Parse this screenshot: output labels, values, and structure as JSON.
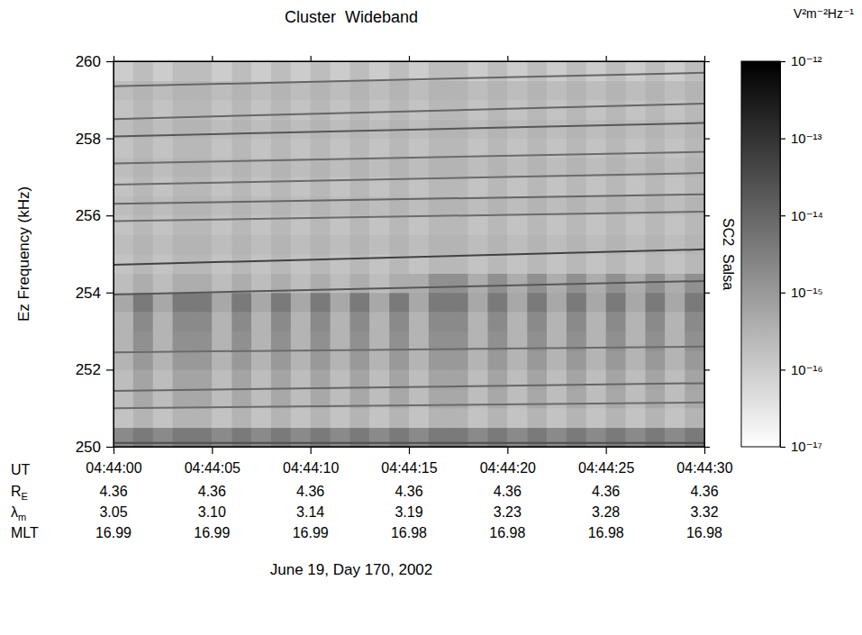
{
  "chart_data": {
    "type": "heatmap",
    "title": "Cluster  Wideband",
    "ylabel": "Ez Frequency (kHz)",
    "right_label": "SC2  Salsa",
    "xlabel": "June 19, Day 170, 2002",
    "x_tick_title": "UT",
    "xlim": [
      0,
      30
    ],
    "xticks": [
      {
        "value": 0,
        "label": "04:44:00"
      },
      {
        "value": 5,
        "label": "04:44:05"
      },
      {
        "value": 10,
        "label": "04:44:10"
      },
      {
        "value": 15,
        "label": "04:44:15"
      },
      {
        "value": 20,
        "label": "04:44:20"
      },
      {
        "value": 25,
        "label": "04:44:25"
      },
      {
        "value": 30,
        "label": "04:44:30"
      }
    ],
    "ylim": [
      250,
      260
    ],
    "yticks": [
      250,
      252,
      254,
      256,
      258,
      260
    ],
    "x_bins": [
      0,
      1,
      2,
      3,
      4,
      5,
      6,
      7,
      8,
      9,
      10,
      11,
      12,
      13,
      14,
      15,
      16,
      17,
      18,
      19,
      20,
      21,
      22,
      23,
      24,
      25,
      26,
      27,
      28,
      29,
      30
    ],
    "y_bins": [
      250,
      250.5,
      251,
      251.5,
      252,
      252.5,
      253,
      253.5,
      254,
      254.5,
      255,
      255.5,
      256,
      256.5,
      257,
      257.5,
      258,
      258.5,
      259,
      259.5,
      260
    ],
    "cells": [
      [
        2e-15,
        4e-15,
        2e-15,
        4e-15,
        4e-15,
        2e-15,
        4e-15,
        2e-15,
        4e-15,
        2e-15,
        4e-15,
        2e-15,
        4e-15,
        2e-15,
        4e-15,
        2e-15,
        4e-15,
        4e-15,
        2e-15,
        4e-15,
        2e-15,
        4e-15,
        2e-15,
        4e-15,
        2e-15,
        4e-15,
        2e-15,
        4e-15,
        2e-15,
        4e-15
      ],
      [
        1.5e-16,
        3e-16,
        1.5e-16,
        3e-16,
        3e-16,
        1.5e-16,
        3e-16,
        1.5e-16,
        3e-16,
        1.5e-16,
        3e-16,
        1.5e-16,
        3e-16,
        1.5e-16,
        3e-16,
        1.5e-16,
        3e-16,
        3e-16,
        1.5e-16,
        3e-16,
        1.5e-16,
        3e-16,
        1.5e-16,
        3e-16,
        1.5e-16,
        3e-16,
        1.5e-16,
        3e-16,
        1.5e-16,
        3e-16
      ],
      [
        2e-16,
        5e-16,
        2e-16,
        5e-16,
        5e-16,
        2e-16,
        5e-16,
        2e-16,
        5e-16,
        2e-16,
        5e-16,
        2e-16,
        5e-16,
        2e-16,
        5e-16,
        2e-16,
        5e-16,
        5e-16,
        2e-16,
        5e-16,
        2e-16,
        5e-16,
        2e-16,
        5e-16,
        2e-16,
        5e-16,
        2e-16,
        5e-16,
        2e-16,
        5e-16
      ],
      [
        2e-16,
        6e-16,
        2e-16,
        6e-16,
        6e-16,
        2e-16,
        6e-16,
        2e-16,
        6e-16,
        2e-16,
        6e-16,
        2e-16,
        6e-16,
        2e-16,
        6e-16,
        2e-16,
        6e-16,
        6e-16,
        2e-16,
        6e-16,
        2e-16,
        6e-16,
        2e-16,
        6e-16,
        2e-16,
        6e-16,
        2e-16,
        6e-16,
        2e-16,
        6e-16
      ],
      [
        3e-16,
        1e-15,
        3e-16,
        1e-15,
        1e-15,
        3e-16,
        1e-15,
        3e-16,
        1e-15,
        3e-16,
        1e-15,
        3e-16,
        1e-15,
        3e-16,
        1e-15,
        3e-16,
        1e-15,
        1e-15,
        3e-16,
        1e-15,
        3e-16,
        1e-15,
        3e-16,
        1e-15,
        3e-16,
        1e-15,
        3e-16,
        1e-15,
        3e-16,
        1e-15
      ],
      [
        3e-16,
        1.5e-15,
        3e-16,
        1.5e-15,
        1.5e-15,
        3e-16,
        1.5e-15,
        3e-16,
        1.5e-15,
        3e-16,
        1.5e-15,
        3e-16,
        1.5e-15,
        3e-16,
        1.5e-15,
        3e-16,
        1.5e-15,
        1.5e-15,
        3e-16,
        1.5e-15,
        3e-16,
        1.5e-15,
        3e-16,
        1.5e-15,
        3e-16,
        1.5e-15,
        3e-16,
        1.5e-15,
        3e-16,
        1.5e-15
      ],
      [
        3e-16,
        2e-15,
        3e-16,
        2e-15,
        2e-15,
        3e-16,
        2e-15,
        3e-16,
        2e-15,
        3e-16,
        2e-15,
        3e-16,
        2e-15,
        3e-16,
        2e-15,
        3e-16,
        2e-15,
        2e-15,
        3e-16,
        2e-15,
        3e-16,
        2e-15,
        3e-16,
        2e-15,
        3e-16,
        2e-15,
        3e-16,
        2e-15,
        3e-16,
        2e-15
      ],
      [
        5e-16,
        4e-15,
        5e-16,
        4e-15,
        4e-15,
        5e-16,
        4e-15,
        5e-16,
        4e-15,
        5e-16,
        4e-15,
        5e-16,
        4e-15,
        5e-16,
        4e-15,
        5e-16,
        4e-15,
        4e-15,
        5e-16,
        4e-15,
        5e-16,
        4e-15,
        5e-16,
        4e-15,
        5e-16,
        4e-15,
        5e-16,
        4e-15,
        5e-16,
        4e-15
      ],
      [
        2e-16,
        4e-16,
        2e-16,
        4e-16,
        4e-16,
        2e-16,
        4e-16,
        2e-16,
        4e-16,
        2e-16,
        4e-16,
        2e-16,
        4e-16,
        2e-16,
        4e-16,
        4e-16,
        1.5e-15,
        1.5e-15,
        4e-16,
        1.5e-15,
        4e-16,
        1.5e-15,
        4e-16,
        1.5e-15,
        4e-16,
        1.5e-15,
        4e-16,
        1.5e-15,
        4e-16,
        1.5e-15
      ],
      [
        1.5e-16,
        2.5e-16,
        1.5e-16,
        2.5e-16,
        2.5e-16,
        1.5e-16,
        2.5e-16,
        1.5e-16,
        2.5e-16,
        1.5e-16,
        2.5e-16,
        1.5e-16,
        2.5e-16,
        1.5e-16,
        2.5e-16,
        1.5e-16,
        2.5e-16,
        2.5e-16,
        1.5e-16,
        2.5e-16,
        1.5e-16,
        2.5e-16,
        1.5e-16,
        2.5e-16,
        1.5e-16,
        2.5e-16,
        1.5e-16,
        2.5e-16,
        1.5e-16,
        2.5e-16
      ],
      [
        2e-16,
        3e-16,
        2e-16,
        3e-16,
        3e-16,
        2e-16,
        3e-16,
        2e-16,
        3e-16,
        2e-16,
        3e-16,
        2e-16,
        3e-16,
        2e-16,
        3e-16,
        2e-16,
        3e-16,
        3e-16,
        2e-16,
        3e-16,
        2e-16,
        3e-16,
        2e-16,
        3e-16,
        2e-16,
        3e-16,
        2e-16,
        3e-16,
        2e-16,
        3e-16
      ],
      [
        1.5e-16,
        2.5e-16,
        1.5e-16,
        2.5e-16,
        2.5e-16,
        1.5e-16,
        2.5e-16,
        1.5e-16,
        2.5e-16,
        1.5e-16,
        2.5e-16,
        1.5e-16,
        2.5e-16,
        1.5e-16,
        2.5e-16,
        1.5e-16,
        2.5e-16,
        2.5e-16,
        1.5e-16,
        2.5e-16,
        1.5e-16,
        2.5e-16,
        1.5e-16,
        2.5e-16,
        1.5e-16,
        2.5e-16,
        1.5e-16,
        2.5e-16,
        1.5e-16,
        2.5e-16
      ],
      [
        2e-16,
        3e-16,
        2e-16,
        3e-16,
        3e-16,
        2e-16,
        3e-16,
        2e-16,
        3e-16,
        2e-16,
        3e-16,
        2e-16,
        3e-16,
        2e-16,
        3e-16,
        2e-16,
        3e-16,
        3e-16,
        2e-16,
        3e-16,
        2e-16,
        3e-16,
        2e-16,
        3e-16,
        2e-16,
        3e-16,
        2e-16,
        3e-16,
        2e-16,
        3e-16
      ],
      [
        1.5e-16,
        2.5e-16,
        1.5e-16,
        2.5e-16,
        2.5e-16,
        1.5e-16,
        2.5e-16,
        1.5e-16,
        2.5e-16,
        1.5e-16,
        2.5e-16,
        1.5e-16,
        2.5e-16,
        1.5e-16,
        2.5e-16,
        1.5e-16,
        2.5e-16,
        2.5e-16,
        1.5e-16,
        2.5e-16,
        1.5e-16,
        2.5e-16,
        1.5e-16,
        2.5e-16,
        1.5e-16,
        2.5e-16,
        1.5e-16,
        2.5e-16,
        1.5e-16,
        2.5e-16
      ],
      [
        2e-16,
        3e-16,
        2e-16,
        3e-16,
        3e-16,
        2e-16,
        3e-16,
        2e-16,
        3e-16,
        2e-16,
        3e-16,
        2e-16,
        3e-16,
        2e-16,
        3e-16,
        2e-16,
        3e-16,
        3e-16,
        2e-16,
        3e-16,
        2e-16,
        3e-16,
        2e-16,
        3e-16,
        2e-16,
        3e-16,
        2e-16,
        3e-16,
        2e-16,
        3e-16
      ],
      [
        1.5e-16,
        2.5e-16,
        1.5e-16,
        2.5e-16,
        2.5e-16,
        1.5e-16,
        2.5e-16,
        1.5e-16,
        2.5e-16,
        1.5e-16,
        2.5e-16,
        1.5e-16,
        2.5e-16,
        1.5e-16,
        2.5e-16,
        1.5e-16,
        2.5e-16,
        2.5e-16,
        1.5e-16,
        2.5e-16,
        1.5e-16,
        2.5e-16,
        1.5e-16,
        2.5e-16,
        1.5e-16,
        2.5e-16,
        1.5e-16,
        2.5e-16,
        1.5e-16,
        2.5e-16
      ],
      [
        2e-16,
        3e-16,
        2e-16,
        3e-16,
        3e-16,
        2e-16,
        3e-16,
        2e-16,
        3e-16,
        2e-16,
        3e-16,
        2e-16,
        3e-16,
        2e-16,
        3e-16,
        2e-16,
        3e-16,
        3e-16,
        2e-16,
        3e-16,
        2e-16,
        3e-16,
        2e-16,
        3e-16,
        2e-16,
        3e-16,
        2e-16,
        3e-16,
        2e-16,
        3e-16
      ],
      [
        1.5e-16,
        2.5e-16,
        1.5e-16,
        2.5e-16,
        2.5e-16,
        1.5e-16,
        2.5e-16,
        1.5e-16,
        2.5e-16,
        1.5e-16,
        2.5e-16,
        1.5e-16,
        2.5e-16,
        1.5e-16,
        2.5e-16,
        1.5e-16,
        2.5e-16,
        2.5e-16,
        1.5e-16,
        2.5e-16,
        1.5e-16,
        2.5e-16,
        1.5e-16,
        2.5e-16,
        1.5e-16,
        2.5e-16,
        1.5e-16,
        2.5e-16,
        1.5e-16,
        2.5e-16
      ],
      [
        2e-16,
        3e-16,
        2e-16,
        3e-16,
        3e-16,
        2e-16,
        3e-16,
        2e-16,
        3e-16,
        2e-16,
        3e-16,
        2e-16,
        3e-16,
        2e-16,
        3e-16,
        2e-16,
        3e-16,
        3e-16,
        2e-16,
        3e-16,
        2e-16,
        3e-16,
        2e-16,
        3e-16,
        2e-16,
        3e-16,
        2e-16,
        3e-16,
        2e-16,
        3e-16
      ],
      [
        1e-16,
        2e-16,
        1e-16,
        2e-16,
        2e-16,
        1e-16,
        2e-16,
        1e-16,
        2e-16,
        1e-16,
        2e-16,
        1e-16,
        2e-16,
        1e-16,
        2e-16,
        1e-16,
        2e-16,
        2e-16,
        1e-16,
        2e-16,
        1e-16,
        2e-16,
        1e-16,
        2e-16,
        1e-16,
        2e-16,
        1e-16,
        2e-16,
        1e-16,
        2e-16
      ]
    ],
    "lines": [
      {
        "x": [
          0,
          30
        ],
        "values": [
          259.35,
          259.7
        ],
        "power": 1e-14
      },
      {
        "x": [
          0,
          30
        ],
        "values": [
          258.5,
          258.9
        ],
        "power": 1e-14
      },
      {
        "x": [
          0,
          30
        ],
        "values": [
          258.05,
          258.4
        ],
        "power": 2e-14
      },
      {
        "x": [
          0,
          30
        ],
        "values": [
          257.35,
          257.65
        ],
        "power": 8e-15
      },
      {
        "x": [
          0,
          30
        ],
        "values": [
          256.8,
          257.1
        ],
        "power": 8e-15
      },
      {
        "x": [
          0,
          30
        ],
        "values": [
          256.3,
          256.55
        ],
        "power": 1e-14
      },
      {
        "x": [
          0,
          30
        ],
        "values": [
          255.85,
          256.1
        ],
        "power": 8e-15
      },
      {
        "x": [
          0,
          30
        ],
        "values": [
          254.72,
          255.12
        ],
        "power": 5e-14
      },
      {
        "x": [
          0,
          30
        ],
        "values": [
          253.95,
          254.3
        ],
        "power": 2e-14
      },
      {
        "x": [
          0,
          30
        ],
        "values": [
          252.45,
          252.6
        ],
        "power": 8e-15
      },
      {
        "x": [
          0,
          30
        ],
        "values": [
          251.45,
          251.65
        ],
        "power": 1e-14
      },
      {
        "x": [
          0,
          30
        ],
        "values": [
          251.0,
          251.15
        ],
        "power": 8e-15
      },
      {
        "x": [
          0,
          30
        ],
        "values": [
          250.1,
          250.1
        ],
        "power": 3e-14
      }
    ],
    "colorbar": {
      "title": "V²m⁻²Hz⁻¹",
      "log": true,
      "lim": [
        1e-17,
        1e-12
      ],
      "ticks": [
        {
          "value": 1e-12,
          "label": "10⁻¹²"
        },
        {
          "value": 1e-13,
          "label": "10⁻¹³"
        },
        {
          "value": 1e-14,
          "label": "10⁻¹⁴"
        },
        {
          "value": 1e-15,
          "label": "10⁻¹⁵"
        },
        {
          "value": 1e-16,
          "label": "10⁻¹⁶"
        },
        {
          "value": 1e-17,
          "label": "10⁻¹⁷"
        }
      ]
    },
    "ephemeris": [
      {
        "label": "R",
        "sub": "E",
        "values": [
          "4.36",
          "4.36",
          "4.36",
          "4.36",
          "4.36",
          "4.36",
          "4.36"
        ]
      },
      {
        "label": "λ",
        "sub": "m",
        "values": [
          "3.05",
          "3.10",
          "3.14",
          "3.19",
          "3.23",
          "3.28",
          "3.32"
        ]
      },
      {
        "label": "MLT",
        "values": [
          "16.99",
          "16.99",
          "16.99",
          "16.98",
          "16.98",
          "16.98",
          "16.98"
        ]
      }
    ]
  }
}
